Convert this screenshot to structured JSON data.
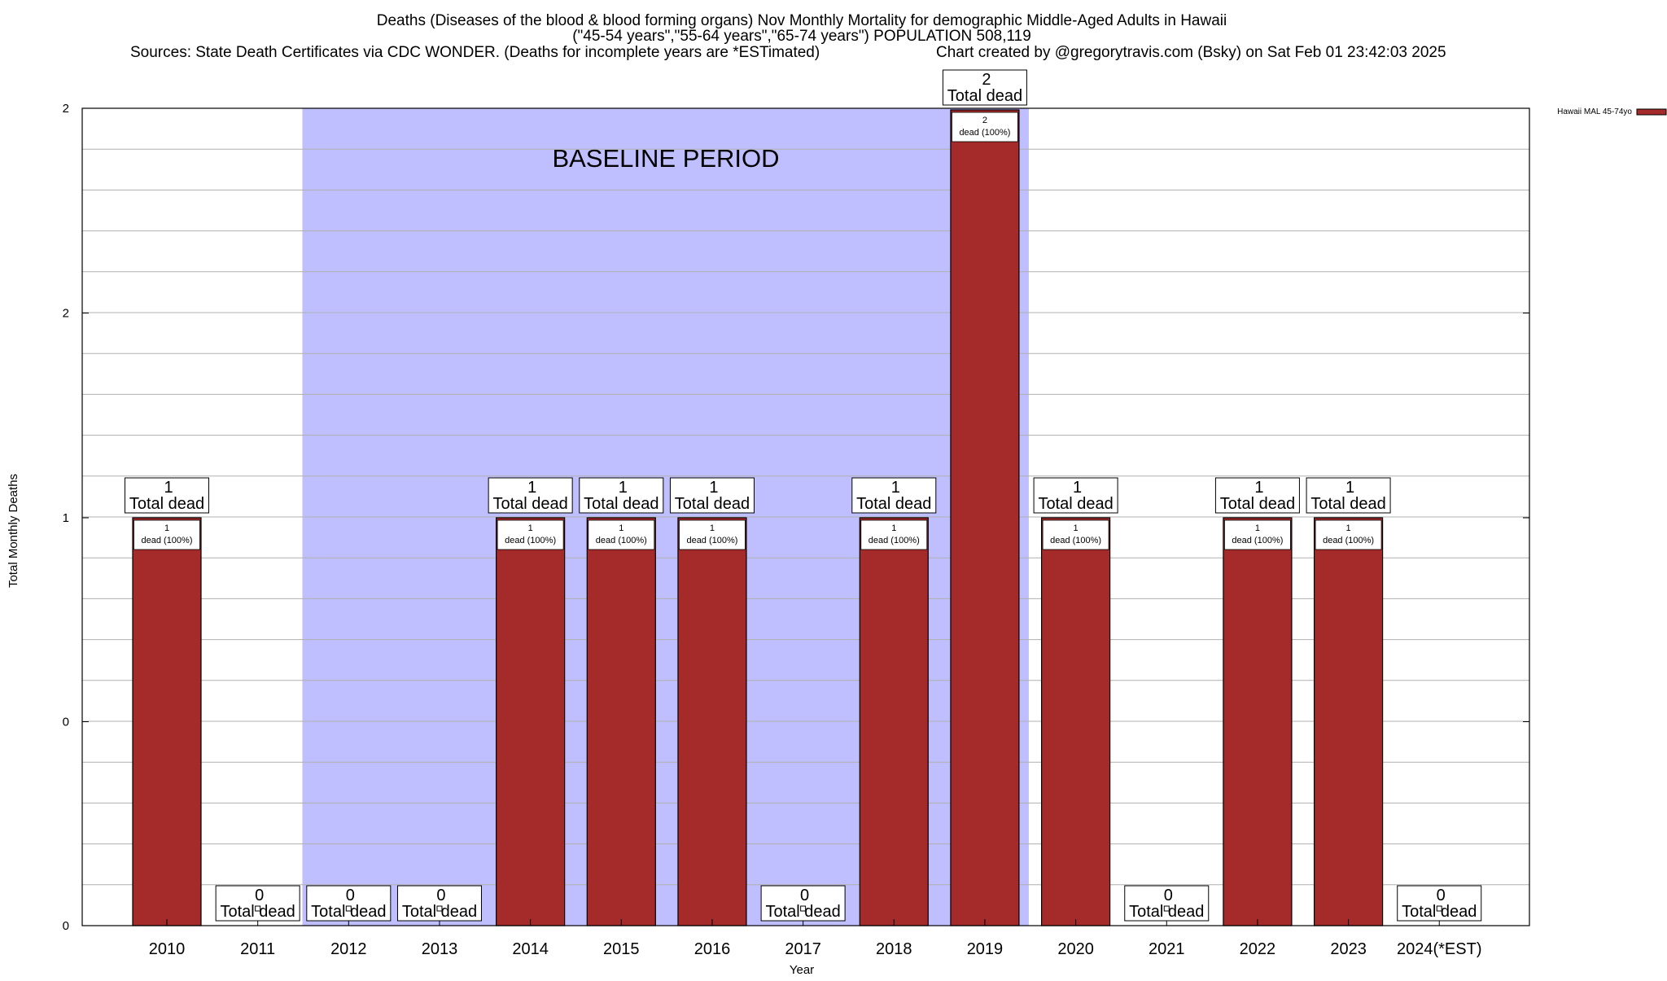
{
  "chart_data": {
    "type": "bar",
    "title_lines": [
      "Deaths (Diseases of the blood & blood forming organs) Nov Monthly Mortality for demographic Middle-Aged Adults in Hawaii",
      "(\"45-54 years\",\"55-64 years\",\"65-74 years\") POPULATION 508,119"
    ],
    "source_text": "Sources: State Death Certificates via CDC WONDER. (Deaths for incomplete years are *ESTimated)",
    "credit_text": "Chart created by @gregorytravis.com (Bsky) on Sat Feb 01 23:42:03 2025",
    "xlabel": "Year",
    "ylabel": "Total Monthly Deaths",
    "ylim": [
      0,
      2
    ],
    "y_tick_labels": [
      "0",
      "0",
      "1",
      "2",
      "2"
    ],
    "categories": [
      "2010",
      "2011",
      "2012",
      "2013",
      "2014",
      "2015",
      "2016",
      "2017",
      "2018",
      "2019",
      "2020",
      "2021",
      "2022",
      "2023",
      "2024(*EST)"
    ],
    "series": [
      {
        "name": "Hawaii MAL 45-74yo",
        "color": "#a52a2a",
        "values": [
          1,
          0,
          0,
          0,
          1,
          1,
          1,
          0,
          1,
          2,
          1,
          0,
          1,
          1,
          0
        ]
      }
    ],
    "total_label_suffix": "Total dead",
    "bar_label_suffix": "dead (100%)",
    "baseline": {
      "label": "BASELINE PERIOD",
      "start": "2012",
      "end": "2019",
      "color": "#bfbfff"
    },
    "legend_position": "top-right",
    "grid": true
  }
}
